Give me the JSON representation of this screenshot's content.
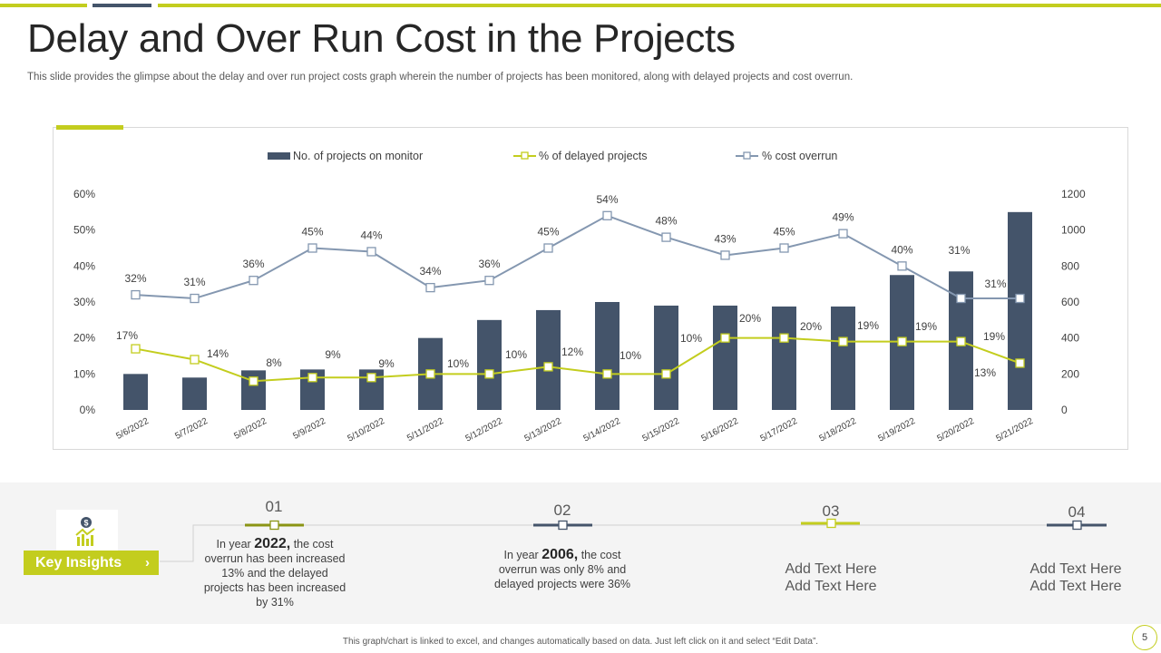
{
  "title": "Delay and Over Run Cost in the Projects",
  "subtitle": "This slide provides the glimpse about the delay and over run project costs graph wherein the number of projects has been monitored, along with delayed projects and cost overrun.",
  "colors": {
    "navy": "#44546a",
    "lime": "#c3cd1e",
    "steel": "#8497b0"
  },
  "chart_data": {
    "type": "bar",
    "categories": [
      "5/6/2022",
      "5/7/2022",
      "5/8/2022",
      "5/9/2022",
      "5/10/2022",
      "5/11/2022",
      "5/12/2022",
      "5/13/2022",
      "5/14/2022",
      "5/15/2022",
      "5/16/2022",
      "5/17/2022",
      "5/18/2022",
      "5/19/2022",
      "5/20/2022",
      "5/21/2022"
    ],
    "legend": [
      "No. of projects on monitor",
      "% of delayed projects",
      "% cost overrun"
    ],
    "y_left_ticks": [
      "0%",
      "10%",
      "20%",
      "30%",
      "40%",
      "50%",
      "60%"
    ],
    "y_right_ticks": [
      "0",
      "200",
      "400",
      "600",
      "800",
      "1000",
      "1200"
    ],
    "y_left_range": [
      0,
      60
    ],
    "y_right_range": [
      0,
      1200
    ],
    "series": [
      {
        "name": "No. of projects on monitor",
        "type": "bar",
        "axis": "right",
        "values": [
          200,
          180,
          220,
          225,
          225,
          400,
          500,
          555,
          600,
          580,
          580,
          575,
          575,
          750,
          770,
          1100
        ]
      },
      {
        "name": "% of delayed projects",
        "type": "line",
        "axis": "left",
        "values": [
          17,
          14,
          8,
          9,
          9,
          10,
          10,
          12,
          10,
          10,
          20,
          20,
          19,
          19,
          19,
          13
        ],
        "labels": [
          "17%",
          "14%",
          "8%",
          "9%",
          "9%",
          "10%",
          "10%",
          "12%",
          "10%",
          "10%",
          "20%",
          "20%",
          "19%",
          "19%",
          "19%",
          "13%"
        ]
      },
      {
        "name": "% cost overrun",
        "type": "line",
        "axis": "left",
        "values": [
          32,
          31,
          36,
          45,
          44,
          34,
          36,
          45,
          54,
          48,
          43,
          45,
          49,
          40,
          31,
          31
        ],
        "labels": [
          "32%",
          "31%",
          "36%",
          "45%",
          "44%",
          "34%",
          "36%",
          "45%",
          "54%",
          "48%",
          "43%",
          "45%",
          "49%",
          "40%",
          "31%",
          "31%"
        ]
      }
    ]
  },
  "insights": {
    "label": "Key Insights",
    "chevron": "›",
    "icon": "money-growth-icon",
    "items": [
      {
        "num": "01",
        "pre": "In year ",
        "year": "2022,",
        "post": " the cost overrun  has been increased 13% and the delayed projects has been increased by 31%"
      },
      {
        "num": "02",
        "pre": "In year ",
        "year": "2006,",
        "post": " the cost overrun  was only 8% and delayed projects were 36%"
      },
      {
        "num": "03",
        "line1": "Add Text Here",
        "line2": "Add Text Here"
      },
      {
        "num": "04",
        "line1": "Add Text Here",
        "line2": "Add Text Here"
      }
    ]
  },
  "footer_note": "This graph/chart is linked to excel, and changes automatically based on data. Just left click on it and select “Edit Data”.",
  "page_number": "5"
}
